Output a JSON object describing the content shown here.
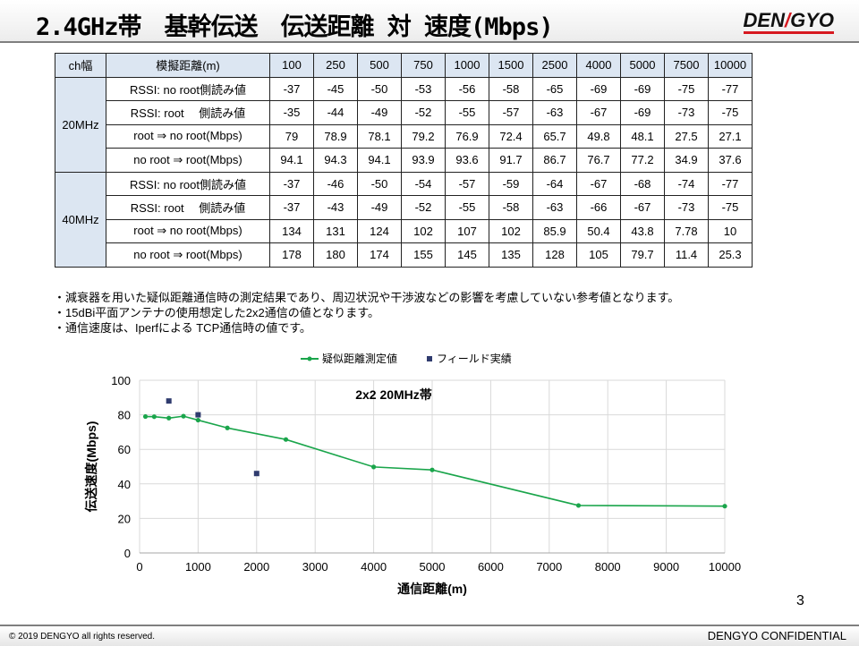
{
  "header": {
    "title": "2.4GHz帯　基幹伝送　伝送距離 対 速度(Mbps)",
    "logo": {
      "left": "DEN",
      "slash": "/",
      "right": "GYO"
    }
  },
  "table": {
    "corner": "ch幅",
    "label_header": "模擬距離(m)",
    "distances": [
      "100",
      "250",
      "500",
      "750",
      "1000",
      "1500",
      "2500",
      "4000",
      "5000",
      "7500",
      "10000"
    ],
    "groups": [
      {
        "name": "20MHz",
        "rows": [
          {
            "label": "RSSI:  no root側読み値",
            "values": [
              "-37",
              "-45",
              "-50",
              "-53",
              "-56",
              "-58",
              "-65",
              "-69",
              "-69",
              "-75",
              "-77"
            ]
          },
          {
            "label": "RSSI:  root　 側読み値",
            "values": [
              "-35",
              "-44",
              "-49",
              "-52",
              "-55",
              "-57",
              "-63",
              "-67",
              "-69",
              "-73",
              "-75"
            ]
          },
          {
            "label": "root ⇒ no root(Mbps)",
            "values": [
              "79",
              "78.9",
              "78.1",
              "79.2",
              "76.9",
              "72.4",
              "65.7",
              "49.8",
              "48.1",
              "27.5",
              "27.1"
            ]
          },
          {
            "label": "no root ⇒ root(Mbps)",
            "values": [
              "94.1",
              "94.3",
              "94.1",
              "93.9",
              "93.6",
              "91.7",
              "86.7",
              "76.7",
              "77.2",
              "34.9",
              "37.6"
            ]
          }
        ]
      },
      {
        "name": "40MHz",
        "rows": [
          {
            "label": "RSSI:  no root側読み値",
            "values": [
              "-37",
              "-46",
              "-50",
              "-54",
              "-57",
              "-59",
              "-64",
              "-67",
              "-68",
              "-74",
              "-77"
            ]
          },
          {
            "label": "RSSI:  root　 側読み値",
            "values": [
              "-37",
              "-43",
              "-49",
              "-52",
              "-55",
              "-58",
              "-63",
              "-66",
              "-67",
              "-73",
              "-75"
            ]
          },
          {
            "label": "root ⇒ no root(Mbps)",
            "values": [
              "134",
              "131",
              "124",
              "102",
              "107",
              "102",
              "85.9",
              "50.4",
              "43.8",
              "7.78",
              "10"
            ]
          },
          {
            "label": "no root ⇒ root(Mbps)",
            "values": [
              "178",
              "180",
              "174",
              "155",
              "145",
              "135",
              "128",
              "105",
              "79.7",
              "11.4",
              "25.3"
            ]
          }
        ]
      }
    ]
  },
  "notes": [
    "・減衰器を用いた疑似距離通信時の測定結果であり、周辺状況や干渉波などの影響を考慮していない参考値となります。",
    "・15dBi平面アンテナの使用想定した2x2通信の値となります。",
    "・通信速度は、Iperfによる TCP通信時の値です。"
  ],
  "chart_data": {
    "type": "scatter",
    "title": "2x2 20MHz帯",
    "xlabel": "通信距離(m)",
    "ylabel": "伝送速度(Mbps)",
    "xlim": [
      0,
      10000
    ],
    "ylim": [
      0,
      100
    ],
    "xticks": [
      0,
      1000,
      2000,
      3000,
      4000,
      5000,
      6000,
      7000,
      8000,
      9000,
      10000
    ],
    "yticks": [
      0,
      20,
      40,
      60,
      80,
      100
    ],
    "grid": true,
    "legend_position": "top",
    "series": [
      {
        "name": "疑似距離測定値",
        "style": "line-marker",
        "color": "#1aa54b",
        "x": [
          100,
          250,
          500,
          750,
          1000,
          1500,
          2500,
          4000,
          5000,
          7500,
          10000
        ],
        "y": [
          79,
          78.9,
          78.1,
          79.2,
          76.9,
          72.4,
          65.7,
          49.8,
          48.1,
          27.5,
          27.1
        ]
      },
      {
        "name": "フィールド実績",
        "style": "marker",
        "color": "#2f3b6e",
        "x": [
          500,
          1000,
          2000
        ],
        "y": [
          88,
          80,
          46
        ]
      }
    ]
  },
  "page_number": "3",
  "footer": {
    "copyright": "© 2019 DENGYO  all rights reserved.",
    "confidential": "DENGYO CONFIDENTIAL"
  }
}
